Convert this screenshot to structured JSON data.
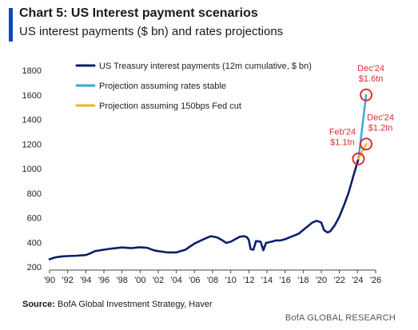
{
  "header": {
    "title": "Chart 5: US Interest payment scenarios",
    "subtitle": "US interest payments ($ bn) and rates projections"
  },
  "footer": {
    "source_label": "Source:",
    "source_text": "BofA Global Investment Strategy, Haver",
    "brand": "BofA GLOBAL RESEARCH"
  },
  "colors": {
    "accent": "#0a4bc4",
    "series_main": "#0b1f6b",
    "series_stable": "#3aa6d8",
    "series_cut": "#f2b02a",
    "annotation": "#d62f2f"
  },
  "chart_data": {
    "type": "line",
    "title": "Chart 5: US Interest payment scenarios",
    "subtitle": "US interest payments ($ bn) and rates projections",
    "xlim": [
      1990,
      2026
    ],
    "ylim": [
      200,
      1800
    ],
    "x_ticks": [
      {
        "value": 1990,
        "label": "'90"
      },
      {
        "value": 1992,
        "label": "'92"
      },
      {
        "value": 1994,
        "label": "'94"
      },
      {
        "value": 1996,
        "label": "'96"
      },
      {
        "value": 1998,
        "label": "'98"
      },
      {
        "value": 2000,
        "label": "'00"
      },
      {
        "value": 2002,
        "label": "'02"
      },
      {
        "value": 2004,
        "label": "'04"
      },
      {
        "value": 2006,
        "label": "'06"
      },
      {
        "value": 2008,
        "label": "'08"
      },
      {
        "value": 2010,
        "label": "'10"
      },
      {
        "value": 2012,
        "label": "'12"
      },
      {
        "value": 2014,
        "label": "'14"
      },
      {
        "value": 2016,
        "label": "'16"
      },
      {
        "value": 2018,
        "label": "'18"
      },
      {
        "value": 2020,
        "label": "'20"
      },
      {
        "value": 2022,
        "label": "'22"
      },
      {
        "value": 2024,
        "label": "'24"
      },
      {
        "value": 2026,
        "label": "'26"
      }
    ],
    "y_ticks": [
      200,
      400,
      600,
      800,
      1000,
      1200,
      1400,
      1600,
      1800
    ],
    "grid": false,
    "legend_position": "top-left",
    "series": [
      {
        "name": "US Treasury interest payments (12m cumulative, $ bn)",
        "color": "#0b1f6b",
        "points": [
          [
            1990.0,
            262
          ],
          [
            1990.5,
            275
          ],
          [
            1991.0,
            282
          ],
          [
            1991.5,
            286
          ],
          [
            1992.0,
            288
          ],
          [
            1993.0,
            291
          ],
          [
            1994.0,
            296
          ],
          [
            1994.5,
            310
          ],
          [
            1995.0,
            328
          ],
          [
            1996.0,
            340
          ],
          [
            1997.0,
            350
          ],
          [
            1998.0,
            358
          ],
          [
            1999.0,
            352
          ],
          [
            2000.0,
            360
          ],
          [
            2000.8,
            355
          ],
          [
            2001.5,
            335
          ],
          [
            2002.0,
            328
          ],
          [
            2003.0,
            318
          ],
          [
            2004.0,
            318
          ],
          [
            2005.0,
            340
          ],
          [
            2006.0,
            390
          ],
          [
            2007.0,
            425
          ],
          [
            2007.8,
            450
          ],
          [
            2008.5,
            440
          ],
          [
            2009.0,
            420
          ],
          [
            2009.5,
            395
          ],
          [
            2010.0,
            405
          ],
          [
            2010.5,
            425
          ],
          [
            2011.0,
            445
          ],
          [
            2011.5,
            450
          ],
          [
            2011.8,
            440
          ],
          [
            2012.0,
            420
          ],
          [
            2012.2,
            345
          ],
          [
            2012.5,
            340
          ],
          [
            2012.8,
            410
          ],
          [
            2013.3,
            405
          ],
          [
            2013.6,
            335
          ],
          [
            2013.9,
            395
          ],
          [
            2014.5,
            405
          ],
          [
            2015.0,
            415
          ],
          [
            2015.5,
            415
          ],
          [
            2016.0,
            425
          ],
          [
            2016.5,
            440
          ],
          [
            2017.0,
            455
          ],
          [
            2017.5,
            470
          ],
          [
            2018.0,
            500
          ],
          [
            2018.5,
            530
          ],
          [
            2019.0,
            560
          ],
          [
            2019.5,
            575
          ],
          [
            2020.0,
            560
          ],
          [
            2020.3,
            500
          ],
          [
            2020.7,
            480
          ],
          [
            2021.0,
            490
          ],
          [
            2021.5,
            540
          ],
          [
            2022.0,
            610
          ],
          [
            2022.5,
            700
          ],
          [
            2023.0,
            800
          ],
          [
            2023.5,
            930
          ],
          [
            2024.1,
            1080
          ]
        ]
      },
      {
        "name": "Projection assuming rates stable",
        "color": "#3aa6d8",
        "points": [
          [
            2024.1,
            1080
          ],
          [
            2024.95,
            1600
          ]
        ]
      },
      {
        "name": "Projection assuming 150bps Fed cut",
        "color": "#f2b02a",
        "points": [
          [
            2024.1,
            1080
          ],
          [
            2024.95,
            1200
          ]
        ]
      }
    ],
    "annotations": [
      {
        "name": "feb24",
        "x": 2024.1,
        "y": 1080,
        "line1": "Feb'24",
        "line2": "$1.1tn",
        "side": "left"
      },
      {
        "name": "dec24-stable",
        "x": 2024.95,
        "y": 1600,
        "line1": "Dec'24",
        "line2": "$1.6tn",
        "side": "above"
      },
      {
        "name": "dec24-cut",
        "x": 2024.95,
        "y": 1200,
        "line1": "Dec'24",
        "line2": "$1.2tn",
        "side": "right-above"
      }
    ]
  }
}
